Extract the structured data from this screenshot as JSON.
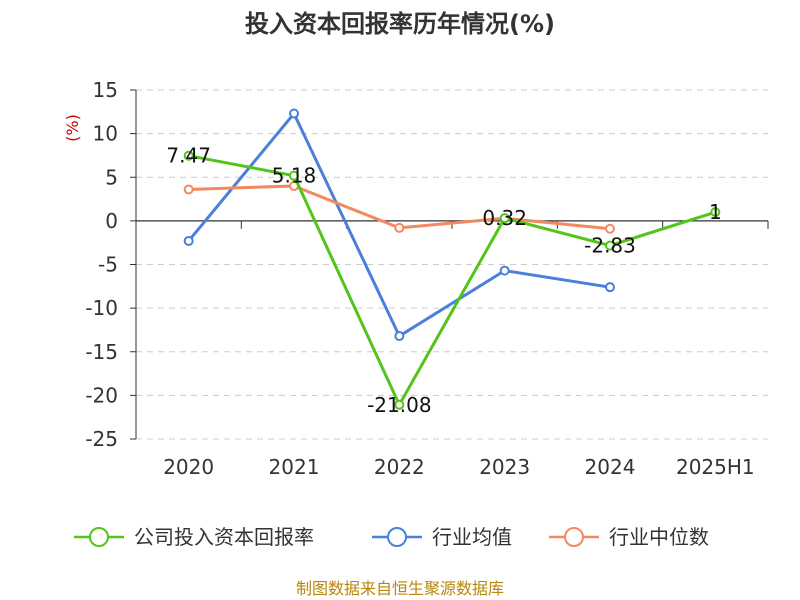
{
  "chart_data": {
    "type": "line",
    "title": "投入资本回报率历年情况(%)",
    "ylabel": "(%)",
    "xlabel": "",
    "categories": [
      "2020",
      "2021",
      "2022",
      "2023",
      "2024",
      "2025H1"
    ],
    "ylim": [
      -25,
      15
    ],
    "yticks": [
      15,
      10,
      5,
      0,
      -5,
      -10,
      -15,
      -20,
      -25
    ],
    "grid": true,
    "legend_position": "bottom",
    "series": [
      {
        "name": "公司投入资本回报率",
        "color": "#52c41a",
        "values": [
          7.47,
          5.18,
          -21.08,
          0.32,
          -2.83,
          1
        ],
        "labels": [
          "7.47",
          "5.18",
          "-21.08",
          "0.32",
          "-2.83",
          "1"
        ]
      },
      {
        "name": "行业均值",
        "color": "#4a7fdc",
        "values": [
          -2.3,
          12.3,
          -13.2,
          -5.7,
          -7.6,
          null
        ]
      },
      {
        "name": "行业中位数",
        "color": "#f4895f",
        "values": [
          3.6,
          4.0,
          -0.8,
          0.3,
          -0.9,
          null
        ]
      }
    ]
  },
  "source": "制图数据来自恒生聚源数据库"
}
